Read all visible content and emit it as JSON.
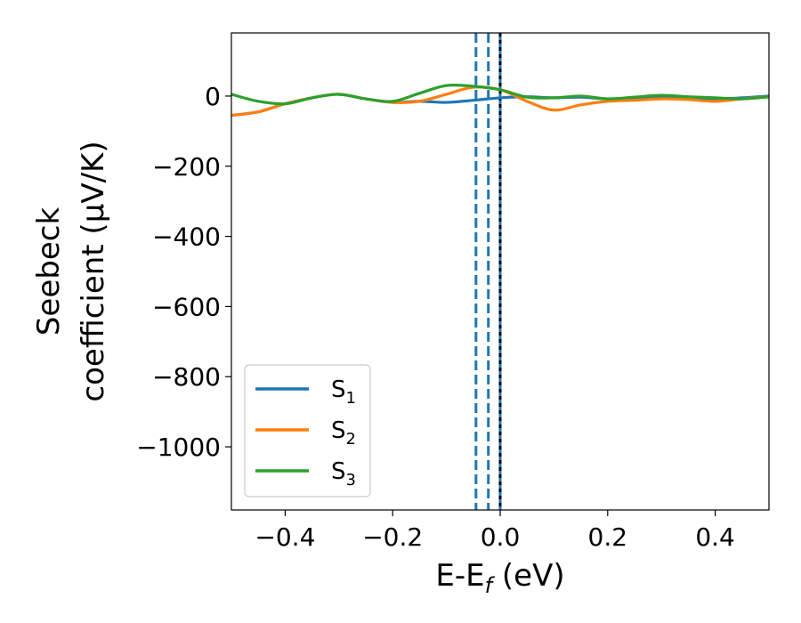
{
  "chart_data": {
    "type": "line",
    "title": "",
    "xlabel": {
      "main": "E-E",
      "sub": "f",
      "unit": " (eV)"
    },
    "ylabel": {
      "line1": "Seebeck",
      "line2": "coefficient  (μV/K)"
    },
    "xlim": [
      -0.5,
      0.5
    ],
    "ylim": [
      -1180,
      180
    ],
    "xticks": [
      -0.4,
      -0.2,
      0.0,
      0.2,
      0.4
    ],
    "xtick_labels": [
      "−0.4",
      "−0.2",
      "0.0",
      "0.2",
      "0.4"
    ],
    "yticks": [
      0,
      -200,
      -400,
      -600,
      -800,
      -1000
    ],
    "ytick_labels": [
      "0",
      "−200",
      "−400",
      "−600",
      "−800",
      "−1000"
    ],
    "grid": false,
    "legend_position": "bottom-left",
    "vlines": [
      {
        "x": -0.045,
        "color": "#1f77b4",
        "style": "dashed"
      },
      {
        "x": -0.022,
        "color": "#1f77b4",
        "style": "dashed"
      },
      {
        "x": 0.0,
        "color": "#1f77b4",
        "style": "solid"
      },
      {
        "x": 0.0,
        "color": "#000000",
        "style": "dotted"
      }
    ],
    "x": [
      -0.5,
      -0.45,
      -0.4,
      -0.35,
      -0.3,
      -0.25,
      -0.2,
      -0.15,
      -0.1,
      -0.05,
      0.0,
      0.05,
      0.1,
      0.15,
      0.2,
      0.25,
      0.3,
      0.35,
      0.4,
      0.45,
      0.5
    ],
    "series": [
      {
        "name": "S",
        "sub": "1",
        "color": "#1f77b4",
        "values": [
          -55,
          -45,
          -22,
          -5,
          5,
          -8,
          -18,
          -15,
          -18,
          -12,
          -5,
          -2,
          -5,
          -3,
          -8,
          -5,
          -3,
          -5,
          -8,
          -5,
          0
        ]
      },
      {
        "name": "S",
        "sub": "2",
        "color": "#ff7f0e",
        "values": [
          -55,
          -45,
          -22,
          -5,
          5,
          -8,
          -18,
          -15,
          5,
          25,
          18,
          -15,
          -40,
          -25,
          -15,
          -12,
          -8,
          -10,
          -15,
          -8,
          -2
        ]
      },
      {
        "name": "S",
        "sub": "3",
        "color": "#2ca02c",
        "values": [
          5,
          -15,
          -22,
          -5,
          5,
          -8,
          -15,
          8,
          30,
          28,
          18,
          -3,
          -5,
          0,
          -8,
          -3,
          2,
          -2,
          -5,
          -8,
          -2
        ]
      }
    ]
  }
}
